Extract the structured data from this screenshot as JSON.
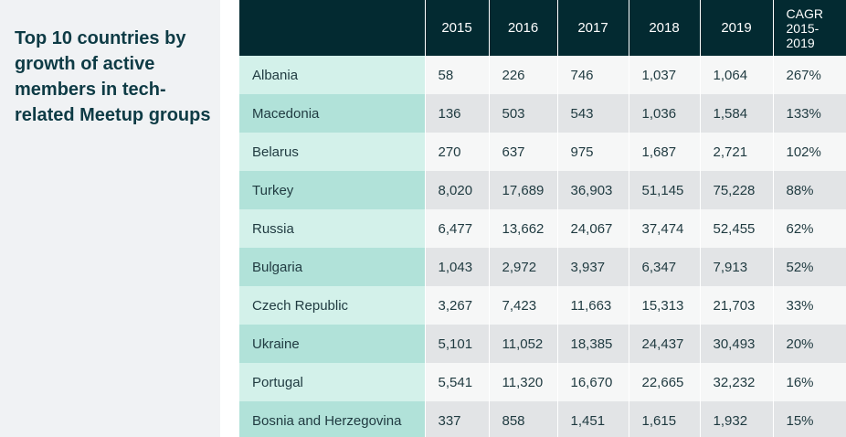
{
  "chart_data": {
    "type": "table",
    "title": "Top 10 countries by growth of active members in tech-related Meetup groups",
    "columns": [
      "",
      "2015",
      "2016",
      "2017",
      "2018",
      "2019",
      "CAGR 2015-2019"
    ],
    "header_cagr_lines": [
      "CAGR",
      "2015-",
      "2019"
    ],
    "rows": [
      {
        "country": "Albania",
        "values": [
          "58",
          "226",
          "746",
          "1,037",
          "1,064"
        ],
        "cagr": "267%"
      },
      {
        "country": "Macedonia",
        "values": [
          "136",
          "503",
          "543",
          "1,036",
          "1,584"
        ],
        "cagr": "133%"
      },
      {
        "country": "Belarus",
        "values": [
          "270",
          "637",
          "975",
          "1,687",
          "2,721"
        ],
        "cagr": "102%"
      },
      {
        "country": "Turkey",
        "values": [
          "8,020",
          "17,689",
          "36,903",
          "51,145",
          "75,228"
        ],
        "cagr": "88%"
      },
      {
        "country": "Russia",
        "values": [
          "6,477",
          "13,662",
          "24,067",
          "37,474",
          "52,455"
        ],
        "cagr": "62%"
      },
      {
        "country": "Bulgaria",
        "values": [
          "1,043",
          "2,972",
          "3,937",
          "6,347",
          "7,913"
        ],
        "cagr": "52%"
      },
      {
        "country": "Czech Republic",
        "values": [
          "3,267",
          "7,423",
          "11,663",
          "15,313",
          "21,703"
        ],
        "cagr": "33%"
      },
      {
        "country": "Ukraine",
        "values": [
          "5,101",
          "11,052",
          "18,385",
          "24,437",
          "30,493"
        ],
        "cagr": "20%"
      },
      {
        "country": "Portugal",
        "values": [
          "5,541",
          "11,320",
          "16,670",
          "22,665",
          "32,232"
        ],
        "cagr": "16%"
      },
      {
        "country": "Bosnia and Herzegovina",
        "values": [
          "337",
          "858",
          "1,451",
          "1,615",
          "1,932"
        ],
        "cagr": "15%"
      }
    ]
  },
  "colors": {
    "header_bg": "#032a31",
    "title_text": "#0e3b45",
    "side_panel_bg": "#f0f2f4",
    "country_light": "#d3f1ea",
    "country_dark": "#b1e2d9",
    "cell_light": "#f6f7f7",
    "cell_dark": "#e2e4e6"
  }
}
